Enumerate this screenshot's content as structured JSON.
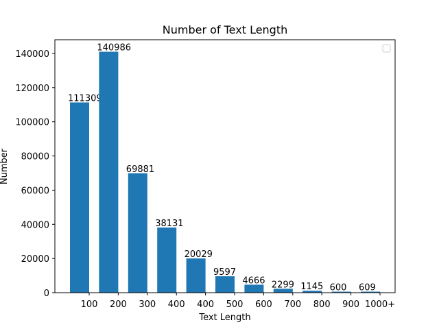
{
  "chart_data": {
    "type": "bar",
    "title": "Number of Text Length",
    "xlabel": "Text Length",
    "ylabel": "Number",
    "categories": [
      "100",
      "200",
      "300",
      "400",
      "400",
      "500",
      "600",
      "700",
      "800",
      "900",
      "1000+"
    ],
    "values": [
      111309,
      140986,
      69881,
      38131,
      20029,
      9597,
      4666,
      2299,
      1145,
      600,
      609
    ],
    "bar_labels": [
      "111309",
      "140986",
      "69881",
      "38131",
      "20029",
      "9597",
      "4666",
      "2299",
      "1145",
      "600",
      "609"
    ],
    "ylim": [
      0,
      148000
    ],
    "yticks": [
      0,
      20000,
      40000,
      60000,
      80000,
      100000,
      120000,
      140000
    ],
    "grid": false,
    "legend": "top-right",
    "bar_color": "#1f77b4"
  }
}
